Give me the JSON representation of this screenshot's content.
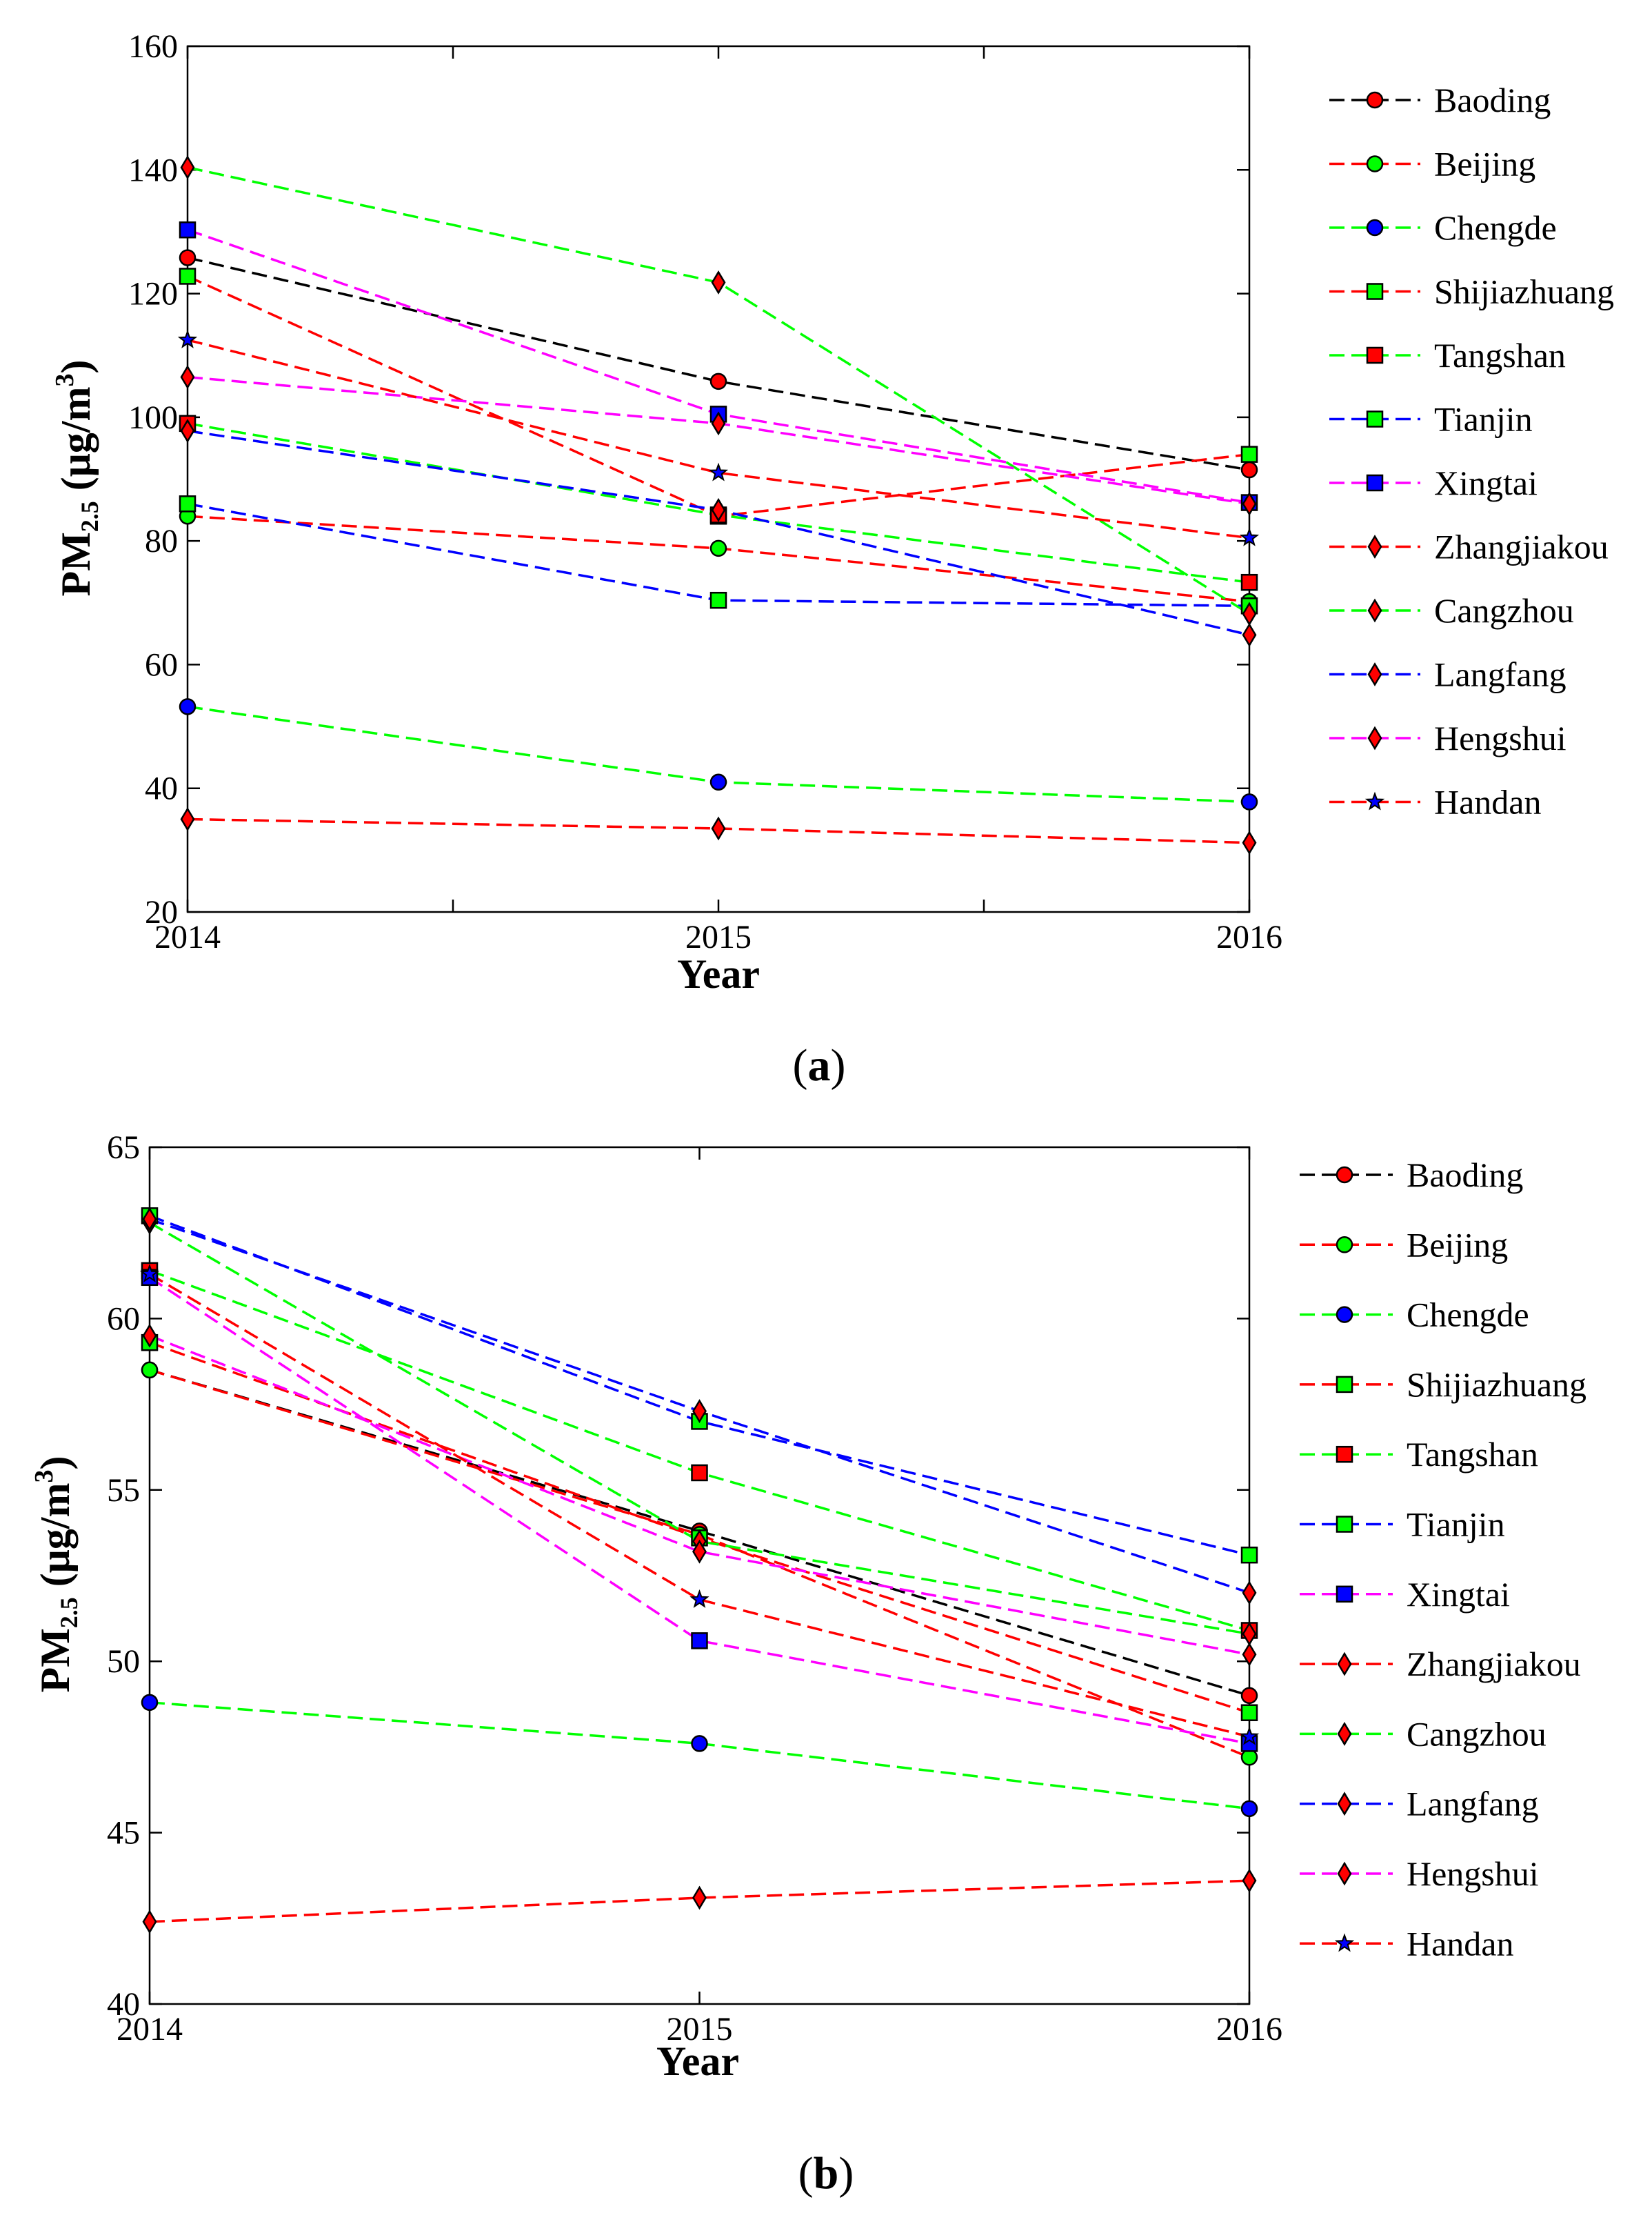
{
  "chart_data": [
    {
      "type": "line",
      "panel_label": "a",
      "xlabel": "Year",
      "ylabel": "PM",
      "ylabel_sub": "2.5",
      "yunit_open": " (μg/m",
      "yunit_sup": "3",
      "yunit_close": ")",
      "x": [
        2014,
        2015,
        2016
      ],
      "x_ticks": [
        "2014",
        "2015",
        "2016"
      ],
      "y_ticks": [
        "20",
        "40",
        "60",
        "80",
        "100",
        "120",
        "140",
        "160"
      ],
      "ylim": [
        20,
        160
      ],
      "series": [
        {
          "name": "Baoding",
          "line_color": "#000000",
          "marker": "circle",
          "marker_color": "#ff0000",
          "values": [
            125.8,
            105.8,
            91.5
          ]
        },
        {
          "name": "Beijing",
          "line_color": "#ff0000",
          "marker": "circle",
          "marker_color": "#00ff00",
          "values": [
            84.0,
            78.8,
            70.2
          ]
        },
        {
          "name": "Chengde",
          "line_color": "#00ff00",
          "marker": "circle",
          "marker_color": "#0000ff",
          "values": [
            53.2,
            41.0,
            37.8
          ]
        },
        {
          "name": "Shijiazhuang",
          "line_color": "#ff0000",
          "marker": "square",
          "marker_color": "#00ff00",
          "values": [
            122.8,
            84.0,
            94.0
          ]
        },
        {
          "name": "Tangshan",
          "line_color": "#00ff00",
          "marker": "square",
          "marker_color": "#ff0000",
          "values": [
            99.0,
            84.2,
            73.3
          ]
        },
        {
          "name": "Tianjin",
          "line_color": "#0000ff",
          "marker": "square",
          "marker_color": "#00ff00",
          "values": [
            86.0,
            70.4,
            69.5
          ]
        },
        {
          "name": "Xingtai",
          "line_color": "#ff00ff",
          "marker": "square",
          "marker_color": "#0000ff",
          "values": [
            130.3,
            100.5,
            86.2
          ]
        },
        {
          "name": "Zhangjiakou",
          "line_color": "#ff0000",
          "marker": "diamond",
          "marker_color": "#ff0000",
          "values": [
            35.0,
            33.5,
            31.2
          ]
        },
        {
          "name": "Cangzhou",
          "line_color": "#00ff00",
          "marker": "diamond",
          "marker_color": "#ff0000",
          "values": [
            140.4,
            121.8,
            68.2
          ]
        },
        {
          "name": "Langfang",
          "line_color": "#0000ff",
          "marker": "diamond",
          "marker_color": "#ff0000",
          "values": [
            97.8,
            85.0,
            64.8
          ]
        },
        {
          "name": "Hengshui",
          "line_color": "#ff00ff",
          "marker": "diamond",
          "marker_color": "#ff0000",
          "values": [
            106.5,
            99.0,
            86.0
          ]
        },
        {
          "name": "Handan",
          "line_color": "#ff0000",
          "marker": "star",
          "marker_color": "#0000ff",
          "values": [
            112.5,
            91.0,
            80.5
          ]
        }
      ]
    },
    {
      "type": "line",
      "panel_label": "b",
      "xlabel": "Year",
      "ylabel": "PM",
      "ylabel_sub": "2.5",
      "yunit_open": " (μg/m",
      "yunit_sup": "3",
      "yunit_close": ")",
      "x": [
        2014,
        2015,
        2016
      ],
      "x_ticks": [
        "2014",
        "2015",
        "2016"
      ],
      "y_ticks": [
        "40",
        "45",
        "50",
        "55",
        "60",
        "65"
      ],
      "ylim": [
        40,
        65
      ],
      "series": [
        {
          "name": "Baoding",
          "line_color": "#000000",
          "marker": "circle",
          "marker_color": "#ff0000",
          "values": [
            58.5,
            53.8,
            49.0
          ]
        },
        {
          "name": "Beijing",
          "line_color": "#ff0000",
          "marker": "circle",
          "marker_color": "#00ff00",
          "values": [
            58.5,
            53.7,
            47.2
          ]
        },
        {
          "name": "Chengde",
          "line_color": "#00ff00",
          "marker": "circle",
          "marker_color": "#0000ff",
          "values": [
            48.8,
            47.6,
            45.7
          ]
        },
        {
          "name": "Shijiazhuang",
          "line_color": "#ff0000",
          "marker": "square",
          "marker_color": "#00ff00",
          "values": [
            59.3,
            53.6,
            48.5
          ]
        },
        {
          "name": "Tangshan",
          "line_color": "#00ff00",
          "marker": "square",
          "marker_color": "#ff0000",
          "values": [
            61.4,
            55.5,
            50.9
          ]
        },
        {
          "name": "Tianjin",
          "line_color": "#0000ff",
          "marker": "square",
          "marker_color": "#00ff00",
          "values": [
            63.0,
            57.0,
            53.1
          ]
        },
        {
          "name": "Xingtai",
          "line_color": "#ff00ff",
          "marker": "square",
          "marker_color": "#0000ff",
          "values": [
            61.2,
            50.6,
            47.6
          ]
        },
        {
          "name": "Zhangjiakou",
          "line_color": "#ff0000",
          "marker": "diamond",
          "marker_color": "#ff0000",
          "values": [
            42.4,
            43.1,
            43.6
          ]
        },
        {
          "name": "Cangzhou",
          "line_color": "#00ff00",
          "marker": "diamond",
          "marker_color": "#ff0000",
          "values": [
            62.8,
            53.5,
            50.8
          ]
        },
        {
          "name": "Langfang",
          "line_color": "#0000ff",
          "marker": "diamond",
          "marker_color": "#ff0000",
          "values": [
            62.9,
            57.3,
            52.0
          ]
        },
        {
          "name": "Hengshui",
          "line_color": "#ff00ff",
          "marker": "diamond",
          "marker_color": "#ff0000",
          "values": [
            59.5,
            53.2,
            50.2
          ]
        },
        {
          "name": "Handan",
          "line_color": "#ff0000",
          "marker": "star",
          "marker_color": "#0000ff",
          "values": [
            61.3,
            51.8,
            47.8
          ]
        }
      ]
    }
  ]
}
